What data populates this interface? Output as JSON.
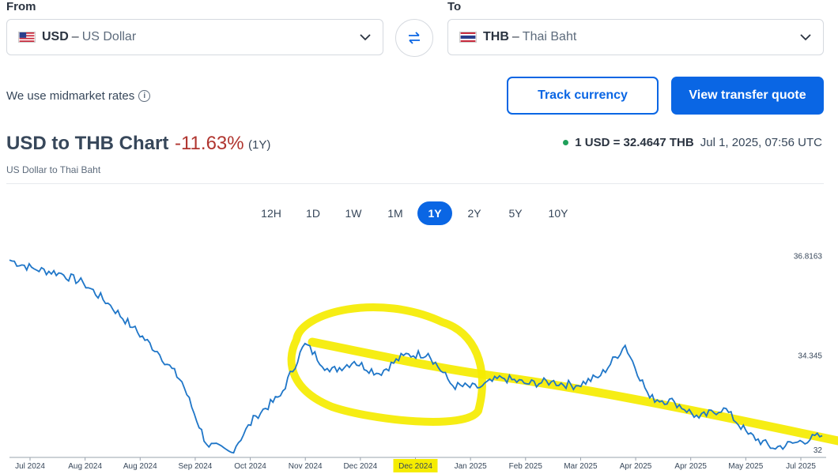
{
  "from": {
    "label": "From",
    "code": "USD",
    "name": "US Dollar",
    "flag": "us-flag-icon"
  },
  "to": {
    "label": "To",
    "code": "THB",
    "name": "Thai Baht",
    "flag": "th-flag-icon"
  },
  "midmarket_text": "We use midmarket rates",
  "buttons": {
    "track": "Track currency",
    "quote": "View transfer quote"
  },
  "header": {
    "title": "USD to THB Chart",
    "change": "-11.63%",
    "period": "(1Y)",
    "subtitle": "US Dollar to Thai Baht",
    "rate": "1 USD = 32.4647 THB",
    "timestamp": "Jul 1, 2025, 07:56 UTC"
  },
  "range_tabs": [
    {
      "label": "12H",
      "active": false
    },
    {
      "label": "1D",
      "active": false
    },
    {
      "label": "1W",
      "active": false
    },
    {
      "label": "1M",
      "active": false
    },
    {
      "label": "1Y",
      "active": true
    },
    {
      "label": "2Y",
      "active": false
    },
    {
      "label": "5Y",
      "active": false
    },
    {
      "label": "10Y",
      "active": false
    }
  ],
  "colors": {
    "accent": "#0a66e4",
    "line": "#1f76c8",
    "change_negative": "#b0352f",
    "highlight": "#f5ec00"
  },
  "chart_data": {
    "type": "line",
    "title": "",
    "xlabel": "",
    "ylabel": "",
    "y_tick_labels": [
      "36.8163",
      "34.345",
      "32"
    ],
    "ylim": [
      32.0,
      37.0
    ],
    "x_tick_labels": [
      "Jul 2024",
      "Aug 2024",
      "Aug 2024",
      "Sep 2024",
      "Oct 2024",
      "Nov 2024",
      "Dec 2024",
      "Dec 2024",
      "Jan 2025",
      "Feb 2025",
      "Mar 2025",
      "Apr 2025",
      "Apr 2025",
      "May 2025",
      "Jul 2025"
    ],
    "highlighted_x_tick": "Dec 2024",
    "series": [
      {
        "name": "",
        "x": [
          "Jul 2024",
          "Jul 2024",
          "Aug 2024",
          "Aug 2024",
          "Aug 2024",
          "Sep 2024",
          "Sep 2024",
          "Sep 2024",
          "Oct 2024",
          "Oct 2024",
          "Nov 2024",
          "Nov 2024",
          "Nov 2024",
          "Dec 2024",
          "Dec 2024",
          "Dec 2024",
          "Dec 2024",
          "Jan 2025",
          "Jan 2025",
          "Jan 2025",
          "Feb 2025",
          "Feb 2025",
          "Mar 2025",
          "Mar 2025",
          "Apr 2025",
          "Apr 2025",
          "Apr 2025",
          "Apr 2025",
          "May 2025",
          "May 2025",
          "May 2025",
          "Jun 2025",
          "Jun 2025",
          "Jul 2025"
        ],
        "values": [
          36.82,
          36.6,
          36.5,
          36.25,
          35.75,
          35.15,
          34.55,
          33.8,
          32.25,
          32.05,
          32.95,
          33.45,
          34.75,
          34.05,
          34.3,
          34.0,
          34.45,
          34.5,
          33.7,
          33.65,
          33.9,
          33.75,
          33.8,
          33.7,
          33.95,
          34.7,
          33.4,
          33.3,
          32.9,
          33.15,
          32.5,
          32.15,
          32.3,
          32.46
        ]
      }
    ],
    "annotations": [
      "hand-drawn yellow ellipse around Nov 2024 – Dec 2024 range",
      "hand-drawn yellow downward trend line"
    ],
    "grid": false
  }
}
